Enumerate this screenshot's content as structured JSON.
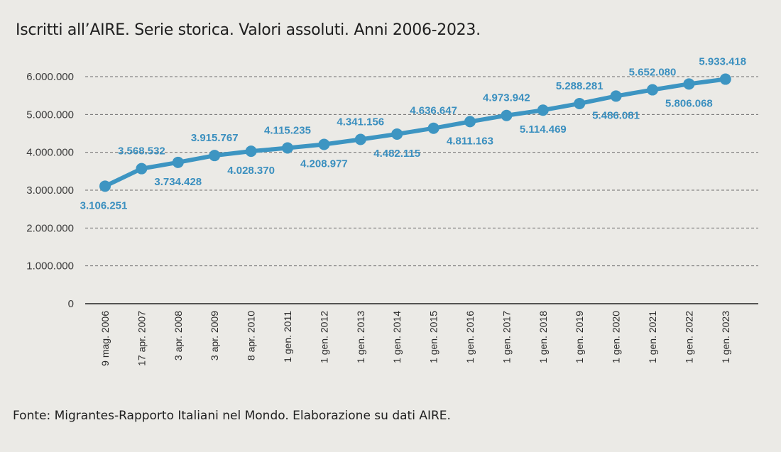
{
  "title": "Iscritti all’AIRE. Serie storica. Valori assoluti. Anni 2006-2023.",
  "source": "Fonte: Migrantes-Rapporto Italiani nel Mondo. Elaborazione su dati AIRE.",
  "colors": {
    "series": "#3d95c2",
    "label": "#3a8fbf",
    "grid": "#6f6f6f",
    "axis": "#222222"
  },
  "chart_data": {
    "type": "line",
    "title": "Iscritti all’AIRE. Serie storica. Valori assoluti. Anni 2006-2023.",
    "xlabel": "",
    "ylabel": "",
    "ylim": [
      0,
      6000000
    ],
    "grid": true,
    "y_ticks": [
      {
        "value": 0,
        "label": "0"
      },
      {
        "value": 1000000,
        "label": "1.000.000"
      },
      {
        "value": 2000000,
        "label": "2.000.000"
      },
      {
        "value": 3000000,
        "label": "3.000.000"
      },
      {
        "value": 4000000,
        "label": "4.000.000"
      },
      {
        "value": 5000000,
        "label": "5.000.000"
      },
      {
        "value": 6000000,
        "label": "6.000.000"
      }
    ],
    "categories": [
      "9 mag. 2006",
      "17 apr. 2007",
      "3 apr. 2008",
      "3 apr. 2009",
      "8 apr. 2010",
      "1 gen. 2011",
      "1 gen. 2012",
      "1 gen. 2013",
      "1 gen. 2014",
      "1 gen. 2015",
      "1 gen. 2016",
      "1 gen. 2017",
      "1 gen. 2018",
      "1 gen. 2019",
      "1 gen. 2020",
      "1 gen. 2021",
      "1 gen. 2022",
      "1 gen. 2023"
    ],
    "series": [
      {
        "values": [
          3106251,
          3568532,
          3734428,
          3915767,
          4028370,
          4115235,
          4208977,
          4341156,
          4482115,
          4636647,
          4811163,
          4973942,
          5114469,
          5288281,
          5486081,
          5652080,
          5806068,
          5933418
        ],
        "labels": [
          "3.106.251",
          "3.568.532",
          "3.734.428",
          "3.915.767",
          "4.028.370",
          "4.115.235",
          "4.208.977",
          "4.341.156",
          "4.482.115",
          "4.636.647",
          "4.811.163",
          "4.973.942",
          "5.114.469",
          "5.288.281",
          "5.486.081",
          "5.652.080",
          "5.806.068",
          "5.933.418"
        ],
        "label_position": [
          "below",
          "above",
          "below",
          "above",
          "below",
          "above",
          "below",
          "above",
          "below",
          "above",
          "below",
          "above",
          "below",
          "above",
          "below",
          "above",
          "below",
          "above"
        ]
      }
    ]
  }
}
